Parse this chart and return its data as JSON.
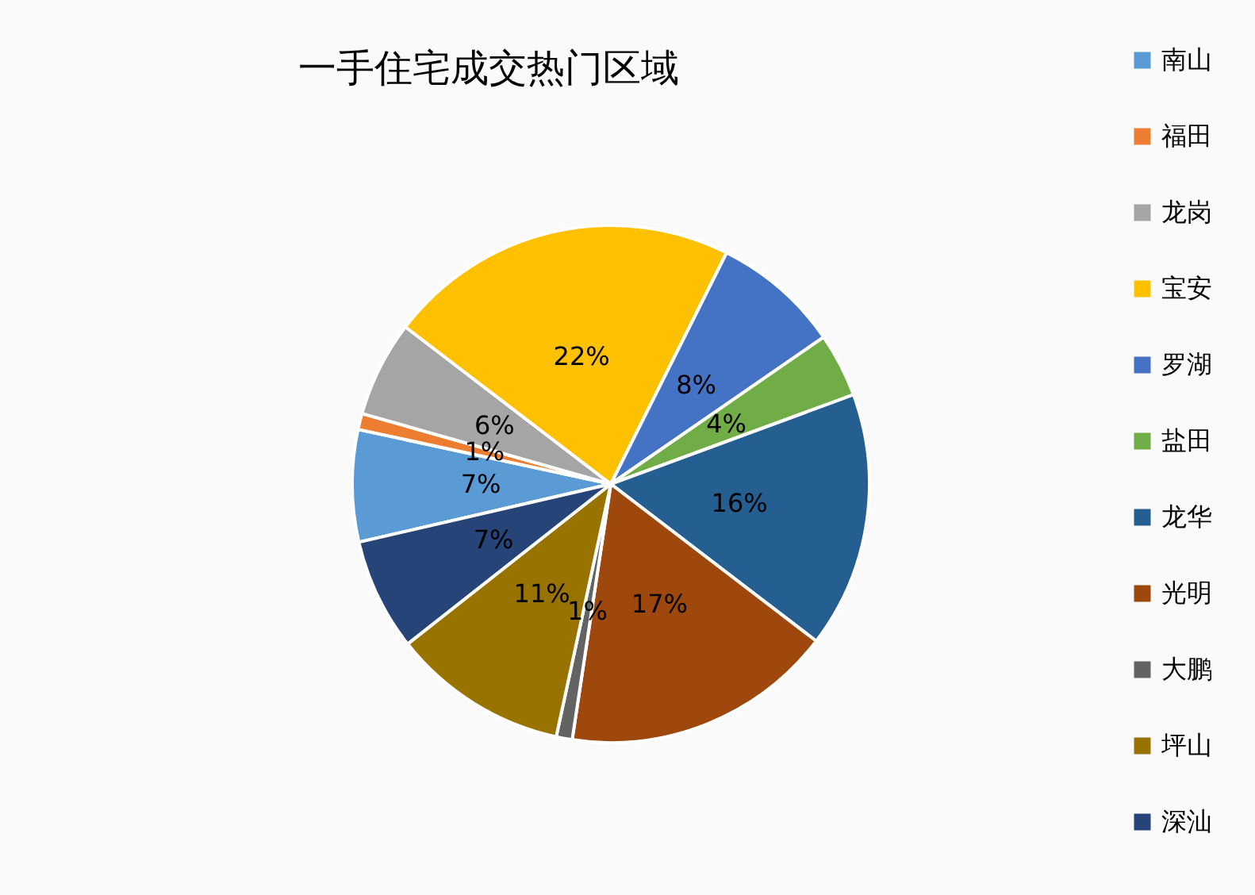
{
  "chart_data": {
    "type": "pie",
    "title": "一手住宅成交热门区域",
    "categories": [
      "南山",
      "福田",
      "龙岗",
      "宝安",
      "罗湖",
      "盐田",
      "龙华",
      "光明",
      "大鹏",
      "坪山",
      "深汕"
    ],
    "values": [
      7,
      1,
      6,
      22,
      8,
      4,
      16,
      17,
      1,
      11,
      7
    ],
    "colors": [
      "#5b9bd5",
      "#ed7d31",
      "#a5a5a5",
      "#ffc000",
      "#4472c4",
      "#70ad47",
      "#255e91",
      "#9e480e",
      "#636363",
      "#997300",
      "#264478"
    ],
    "value_labels": [
      "7%",
      "1%",
      "6%",
      "22%",
      "8%",
      "4%",
      "16%",
      "17%",
      "1%",
      "11%",
      "7%"
    ],
    "legend": "right"
  }
}
